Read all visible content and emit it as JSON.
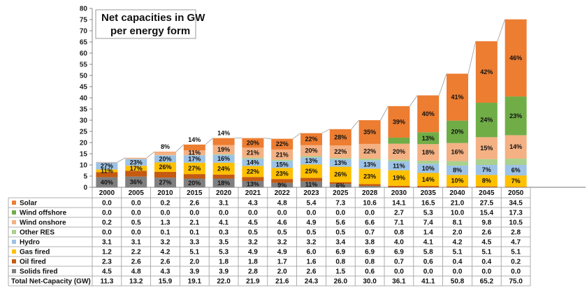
{
  "chart_data": {
    "type": "bar",
    "title": "Net capacities in GW per energy form",
    "title_lines": [
      "Net capacities in GW",
      "per energy form"
    ],
    "ylim": [
      0,
      80
    ],
    "yticks": [
      "0",
      "5",
      "10",
      "15",
      "20",
      "25",
      "30",
      "35",
      "40",
      "45",
      "50",
      "55",
      "60",
      "65",
      "70",
      "75",
      "80"
    ],
    "categories": [
      "2000",
      "2005",
      "2010",
      "2015",
      "2020",
      "2021",
      "2022",
      "2023",
      "2025",
      "2028",
      "2030",
      "2035",
      "2040",
      "2045",
      "2050"
    ],
    "series": [
      {
        "name": "Solids fired",
        "color": "#808080",
        "values": [
          4.5,
          4.8,
          4.3,
          3.9,
          3.9,
          2.8,
          2.0,
          2.6,
          1.5,
          0.6,
          0.0,
          0.0,
          0.0,
          0.0,
          0.0
        ],
        "display": [
          "4.5",
          "4.8",
          "4.3",
          "3.9",
          "3.9",
          "2.8",
          "2.0",
          "2.6",
          "1.5",
          "0.6",
          "0.0",
          "0.0",
          "0.0",
          "0.0",
          "0.0"
        ],
        "pct_labels": [
          "40%",
          "36%",
          "27%",
          "20%",
          "18%",
          "13%",
          "9%",
          "11%",
          "6%",
          "",
          "",
          "",
          "",
          "",
          ""
        ]
      },
      {
        "name": "Oil fired",
        "color": "#C55A11",
        "values": [
          2.3,
          2.6,
          2.6,
          2.0,
          1.8,
          1.8,
          1.7,
          1.6,
          0.8,
          0.8,
          0.7,
          0.6,
          0.4,
          0.4,
          0.2
        ],
        "display": [
          "2.3",
          "2.6",
          "2.6",
          "2.0",
          "1.8",
          "1.8",
          "1.7",
          "1.6",
          "0.8",
          "0.8",
          "0.7",
          "0.6",
          "0.4",
          "0.4",
          "0.2"
        ],
        "pct_labels": [
          "",
          "",
          "",
          "",
          "",
          "",
          "",
          "",
          "",
          "",
          "",
          "",
          "",
          "",
          ""
        ]
      },
      {
        "name": "Gas fired",
        "color": "#FFC000",
        "values": [
          1.2,
          2.2,
          4.2,
          5.1,
          5.3,
          4.9,
          4.9,
          6.0,
          6.9,
          6.9,
          6.9,
          5.8,
          5.1,
          5.1,
          5.1
        ],
        "display": [
          "1.2",
          "2.2",
          "4.2",
          "5.1",
          "5.3",
          "4.9",
          "4.9",
          "6.0",
          "6.9",
          "6.9",
          "6.9",
          "5.8",
          "5.1",
          "5.1",
          "5.1"
        ],
        "pct_labels": [
          "11%",
          "17%",
          "26%",
          "27%",
          "24%",
          "22%",
          "23%",
          "25%",
          "26%",
          "23%",
          "19%",
          "14%",
          "10%",
          "8%",
          "7%"
        ]
      },
      {
        "name": "Hydro",
        "color": "#9DC3E6",
        "values": [
          3.1,
          3.1,
          3.2,
          3.3,
          3.5,
          3.2,
          3.2,
          3.2,
          3.4,
          3.8,
          4.0,
          4.1,
          4.2,
          4.5,
          4.7
        ],
        "display": [
          "3.1",
          "3.1",
          "3.2",
          "3.3",
          "3.5",
          "3.2",
          "3.2",
          "3.2",
          "3.4",
          "3.8",
          "4.0",
          "4.1",
          "4.2",
          "4.5",
          "4.7"
        ],
        "pct_labels": [
          "27%",
          "23%",
          "20%",
          "17%",
          "16%",
          "14%",
          "15%",
          "13%",
          "13%",
          "13%",
          "11%",
          "10%",
          "8%",
          "7%",
          "6%"
        ]
      },
      {
        "name": "Other RES",
        "color": "#A9D18E",
        "values": [
          0.0,
          0.0,
          0.1,
          0.1,
          0.3,
          0.5,
          0.5,
          0.5,
          0.5,
          0.7,
          0.8,
          1.4,
          2.0,
          2.6,
          2.8
        ],
        "display": [
          "0.0",
          "0.0",
          "0.1",
          "0.1",
          "0.3",
          "0.5",
          "0.5",
          "0.5",
          "0.5",
          "0.7",
          "0.8",
          "1.4",
          "2.0",
          "2.6",
          "2.8"
        ],
        "pct_labels": [
          "",
          "",
          "",
          "",
          "",
          "",
          "",
          "",
          "",
          "",
          "",
          "",
          "",
          "",
          ""
        ]
      },
      {
        "name": "Wind onshore",
        "color": "#F4B183",
        "values": [
          0.2,
          0.5,
          1.3,
          2.1,
          4.1,
          4.5,
          4.6,
          4.9,
          5.6,
          6.6,
          7.1,
          7.4,
          8.1,
          9.8,
          10.5
        ],
        "display": [
          "0.2",
          "0.5",
          "1.3",
          "2.1",
          "4.1",
          "4.5",
          "4.6",
          "4.9",
          "5.6",
          "6.6",
          "7.1",
          "7.4",
          "8.1",
          "9.8",
          "10.5"
        ],
        "pct_labels": [
          "",
          "",
          "",
          "11%",
          "19%",
          "21%",
          "21%",
          "20%",
          "22%",
          "22%",
          "20%",
          "18%",
          "16%",
          "15%",
          "14%"
        ]
      },
      {
        "name": "Wind offshore",
        "color": "#70AD47",
        "values": [
          0.0,
          0.0,
          0.0,
          0.0,
          0.0,
          0.0,
          0.0,
          0.0,
          0.0,
          0.0,
          2.7,
          5.3,
          10.0,
          15.4,
          17.3
        ],
        "display": [
          "0.0",
          "0.0",
          "0.0",
          "0.0",
          "0.0",
          "0.0",
          "0.0",
          "0.0",
          "0.0",
          "0.0",
          "2.7",
          "5.3",
          "10.0",
          "15.4",
          "17.3"
        ],
        "pct_labels": [
          "",
          "",
          "",
          "",
          "",
          "",
          "",
          "",
          "",
          "",
          "",
          "13%",
          "20%",
          "24%",
          "23%"
        ]
      },
      {
        "name": "Solar",
        "color": "#ED7D31",
        "values": [
          0.0,
          0.0,
          0.2,
          2.6,
          3.1,
          4.3,
          4.8,
          5.4,
          7.3,
          10.6,
          14.1,
          16.5,
          21.0,
          27.5,
          34.5
        ],
        "display": [
          "0.0",
          "0.0",
          "0.2",
          "2.6",
          "3.1",
          "4.3",
          "4.8",
          "5.4",
          "7.3",
          "10.6",
          "14.1",
          "16.5",
          "21.0",
          "27.5",
          "34.5"
        ],
        "pct_labels": [
          "",
          "",
          "",
          "",
          "",
          "20%",
          "22%",
          "22%",
          "28%",
          "35%",
          "39%",
          "40%",
          "41%",
          "42%",
          "46%"
        ]
      }
    ],
    "above_bar_labels": [
      "",
      "",
      "8%",
      "14%",
      "14%",
      "",
      "",
      "",
      "",
      "",
      "",
      "",
      "",
      "",
      ""
    ],
    "totals": {
      "label": "Total Net-Capacity (GW)",
      "values": [
        11.3,
        13.2,
        15.9,
        19.1,
        22.0,
        21.9,
        21.6,
        24.3,
        26.0,
        30.0,
        36.1,
        41.1,
        50.8,
        65.2,
        75.0
      ],
      "display": [
        "11.3",
        "13.2",
        "15.9",
        "19.1",
        "22.0",
        "21.9",
        "21.6",
        "24.3",
        "26.0",
        "30.0",
        "36.1",
        "41.1",
        "50.8",
        "65.2",
        "75.0"
      ]
    },
    "table_row_order": [
      "Solar",
      "Wind offshore",
      "Wind onshore",
      "Other RES",
      "Hydro",
      "Gas fired",
      "Oil fired",
      "Solids fired"
    ],
    "grid": false
  }
}
